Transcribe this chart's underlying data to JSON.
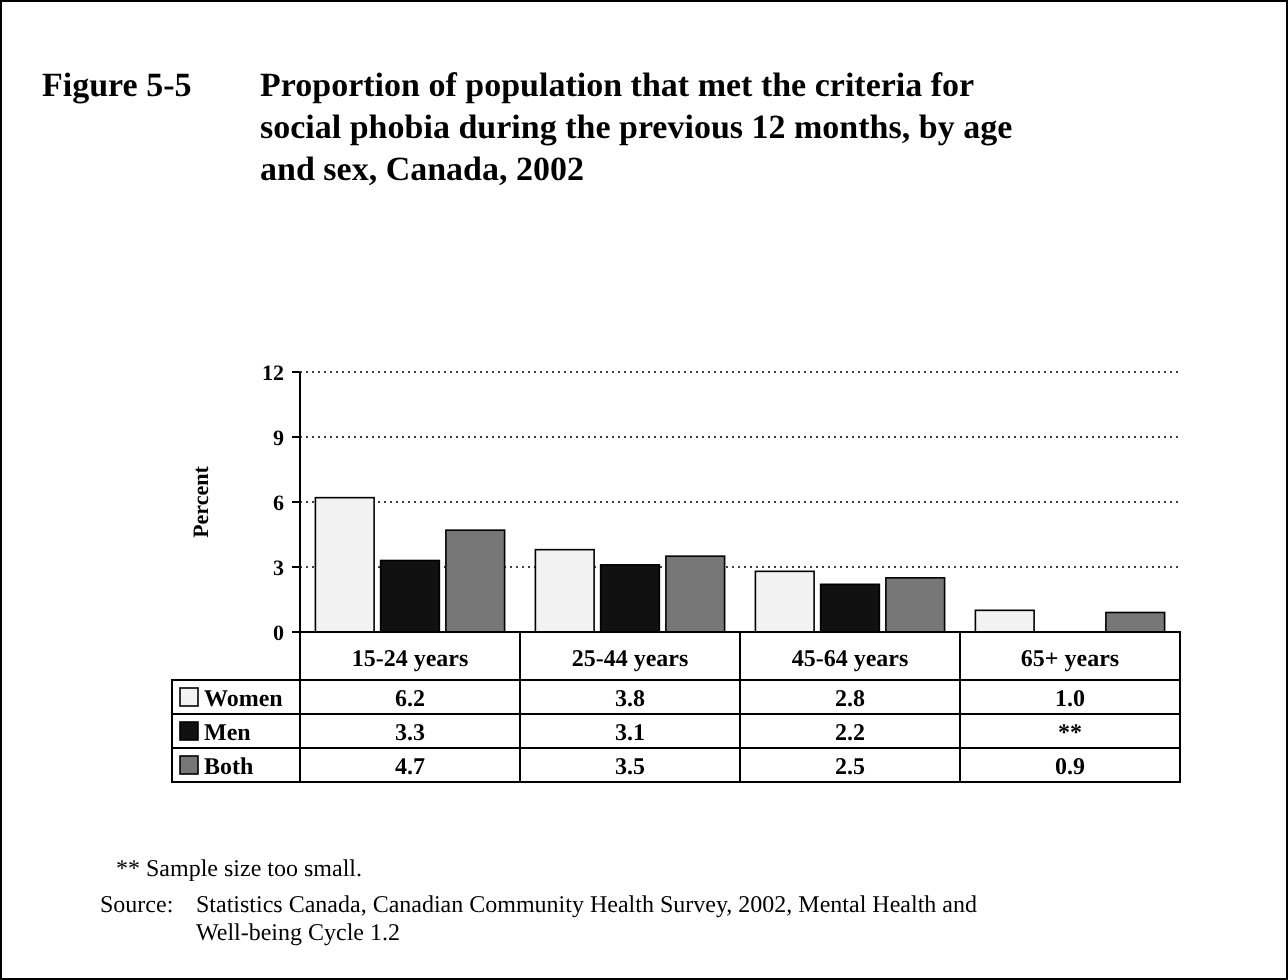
{
  "chart_data": {
    "type": "bar",
    "title": "Figure 5-5    Proportion of population that met the criteria for social phobia during the previous 12 months, by age and sex, Canada, 2002",
    "ylabel": "Percent",
    "categories": [
      "15-24 years",
      "25-44 years",
      "45-64 years",
      "65+ years"
    ],
    "series": [
      {
        "name": "Women",
        "color": "#f2f2f2",
        "values": [
          6.2,
          3.8,
          2.8,
          1.0
        ],
        "value_labels": [
          "6.2",
          "3.8",
          "2.8",
          "1.0"
        ]
      },
      {
        "name": "Men",
        "color": "#111111",
        "values": [
          3.3,
          3.1,
          2.2,
          null
        ],
        "value_labels": [
          "3.3",
          "3.1",
          "2.2",
          "**"
        ]
      },
      {
        "name": "Both",
        "color": "#777777",
        "values": [
          4.7,
          3.5,
          2.5,
          0.9
        ],
        "value_labels": [
          "4.7",
          "3.5",
          "2.5",
          "0.9"
        ]
      }
    ],
    "ylim": [
      0,
      12
    ],
    "yticks": [
      0,
      3,
      6,
      9,
      12
    ],
    "grid": "y",
    "legend": "bottom",
    "annotations": [
      "** Sample size too small.",
      "Source:  Statistics Canada, Canadian Community Health Survey, 2002, Mental Health and Well-being Cycle 1.2"
    ]
  }
}
